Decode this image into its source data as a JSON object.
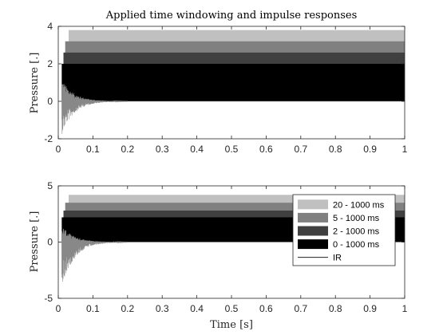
{
  "chart_data": [
    {
      "type": "area",
      "title": "Applied time windowing and impulse responses",
      "xlabel": "",
      "ylabel": "Pressure [.]",
      "xlim": [
        0,
        1
      ],
      "ylim": [
        -2,
        4
      ],
      "xticks": [
        "0",
        "0.1",
        "0.2",
        "0.3",
        "0.4",
        "0.5",
        "0.6",
        "0.7",
        "0.8",
        "0.9",
        "1"
      ],
      "yticks": [
        "-2",
        "0",
        "2",
        "4"
      ],
      "legend": "none",
      "windows": [
        {
          "name": "20 - 1000 ms",
          "start": 0.03,
          "end": 1.0,
          "bottom": 0,
          "top": 3.8,
          "color": "#c0c0c0"
        },
        {
          "name": "5 - 1000 ms",
          "start": 0.02,
          "end": 1.0,
          "bottom": 0,
          "top": 3.2,
          "color": "#808080"
        },
        {
          "name": "2 - 1000 ms",
          "start": 0.015,
          "end": 1.0,
          "bottom": 0,
          "top": 2.6,
          "color": "#404040"
        },
        {
          "name": "0 - 1000 ms",
          "start": 0.01,
          "end": 1.0,
          "bottom": 0,
          "top": 2.0,
          "color": "#000000"
        }
      ],
      "ir": {
        "name": "IR",
        "onset": 0.01,
        "peak_pos": 1.2,
        "peak_neg": -1.8,
        "decay_end": 0.2
      }
    },
    {
      "type": "area",
      "title": "",
      "xlabel": "Time [s]",
      "ylabel": "Pressure [.]",
      "xlim": [
        0,
        1
      ],
      "ylim": [
        -5,
        5
      ],
      "xticks": [
        "0",
        "0.1",
        "0.2",
        "0.3",
        "0.4",
        "0.5",
        "0.6",
        "0.7",
        "0.8",
        "0.9",
        "1"
      ],
      "yticks": [
        "-5",
        "0",
        "5"
      ],
      "legend": "top-right",
      "windows": [
        {
          "name": "20 - 1000 ms",
          "start": 0.03,
          "end": 1.0,
          "bottom": 0,
          "top": 4.2,
          "color": "#c0c0c0"
        },
        {
          "name": "5 - 1000 ms",
          "start": 0.02,
          "end": 1.0,
          "bottom": 0,
          "top": 3.5,
          "color": "#808080"
        },
        {
          "name": "2 - 1000 ms",
          "start": 0.015,
          "end": 1.0,
          "bottom": 0,
          "top": 2.8,
          "color": "#404040"
        },
        {
          "name": "0 - 1000 ms",
          "start": 0.01,
          "end": 1.0,
          "bottom": 0,
          "top": 2.2,
          "color": "#000000"
        }
      ],
      "ir": {
        "name": "IR",
        "onset": 0.01,
        "peak_pos": 1.5,
        "peak_neg": -4.2,
        "decay_end": 0.2
      }
    }
  ]
}
